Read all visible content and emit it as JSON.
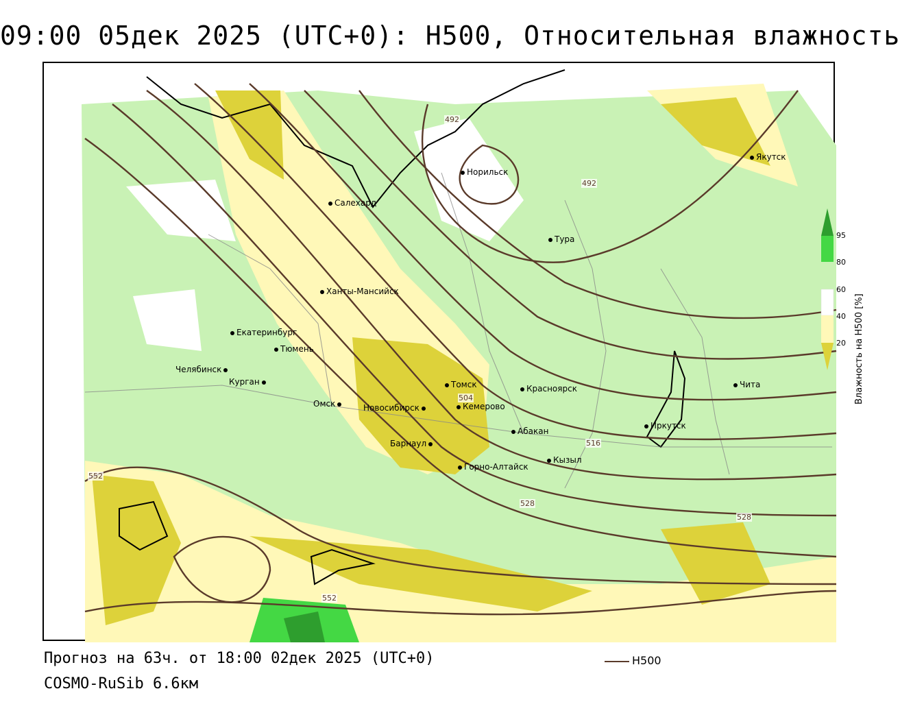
{
  "title": "09:00 05дек 2025 (UTC+0): H500, Относительная влажность",
  "footer": {
    "forecast": "Прогноз на 63ч. от 18:00 02дек 2025 (UTC+0)",
    "model": "COSMO-RuSib 6.6км"
  },
  "line_legend": {
    "label": "H500",
    "color": "#5a3a2a"
  },
  "colorbar": {
    "title": "Влажность на H500 [%]",
    "ticks": [
      "95",
      "80",
      "60",
      "40",
      "20"
    ],
    "colors": {
      "very_high": "#2e9e2e",
      "high": "#44d844",
      "moist": "#c9f2b5",
      "neutral": "#ffffff",
      "dry": "#fff8b8",
      "very_dry": "#ddd23a"
    }
  },
  "isoline_labels": [
    "492",
    "492",
    "504",
    "516",
    "528",
    "528",
    "552",
    "552"
  ],
  "cities": [
    "Якутск",
    "Норильск",
    "Салехард",
    "Тура",
    "Ханты-Мансийск",
    "Екатеринбург",
    "Тюмень",
    "Челябинск",
    "Курган",
    "Омск",
    "Новосибирск",
    "Томск",
    "Кемерово",
    "Красноярск",
    "Барнаул",
    "Абакан",
    "Горно-Алтайск",
    "Кызыл",
    "Иркутск",
    "Чита"
  ]
}
